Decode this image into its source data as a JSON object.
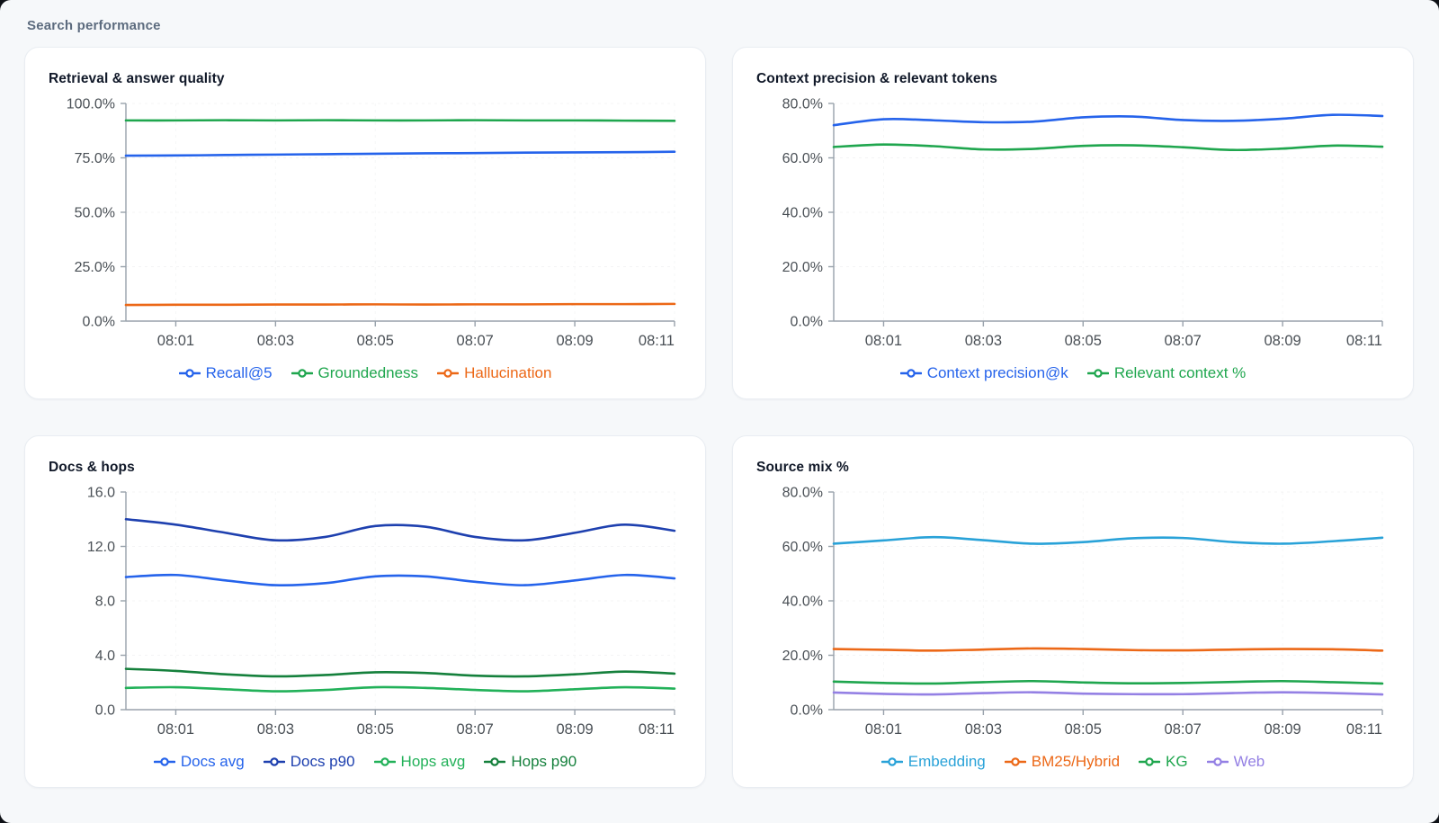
{
  "page": {
    "title": "Search performance"
  },
  "chart_data": [
    {
      "type": "line",
      "title": "Retrieval & answer quality",
      "x": [
        0,
        1,
        2,
        3,
        4,
        5,
        6,
        7,
        8,
        9,
        10,
        11
      ],
      "xticks": [
        1,
        3,
        5,
        7,
        9,
        11
      ],
      "xtick_labels": [
        "08:01",
        "08:03",
        "08:05",
        "08:07",
        "08:09",
        "08:11"
      ],
      "ylim": [
        0,
        100
      ],
      "yticks": [
        0,
        25,
        50,
        75,
        100
      ],
      "ytick_labels": [
        "0.0%",
        "25.0%",
        "50.0%",
        "75.0%",
        "100.0%"
      ],
      "grid": true,
      "legend_position": "bottom",
      "series": [
        {
          "name": "Recall@5",
          "color": "#2563eb",
          "values": [
            76.0,
            76.1,
            76.3,
            76.5,
            76.7,
            76.9,
            77.1,
            77.2,
            77.4,
            77.5,
            77.6,
            77.8
          ]
        },
        {
          "name": "Groundedness",
          "color": "#1fa64e",
          "values": [
            92.2,
            92.2,
            92.3,
            92.2,
            92.3,
            92.2,
            92.2,
            92.3,
            92.2,
            92.2,
            92.1,
            92.0
          ]
        },
        {
          "name": "Hallucination",
          "color": "#ec6817",
          "values": [
            7.4,
            7.5,
            7.5,
            7.6,
            7.6,
            7.7,
            7.6,
            7.7,
            7.7,
            7.8,
            7.8,
            7.9
          ]
        }
      ]
    },
    {
      "type": "line",
      "title": "Context precision & relevant tokens",
      "x": [
        0,
        1,
        2,
        3,
        4,
        5,
        6,
        7,
        8,
        9,
        10,
        11
      ],
      "xticks": [
        1,
        3,
        5,
        7,
        9,
        11
      ],
      "xtick_labels": [
        "08:01",
        "08:03",
        "08:05",
        "08:07",
        "08:09",
        "08:11"
      ],
      "ylim": [
        0,
        80
      ],
      "yticks": [
        0,
        20,
        40,
        60,
        80
      ],
      "ytick_labels": [
        "0.0%",
        "20.0%",
        "40.0%",
        "60.0%",
        "80.0%"
      ],
      "grid": true,
      "legend_position": "bottom",
      "series": [
        {
          "name": "Context precision@k",
          "color": "#2563eb",
          "values": [
            72.0,
            74.2,
            73.8,
            73.1,
            73.3,
            74.9,
            75.2,
            73.9,
            73.6,
            74.4,
            75.8,
            75.4
          ]
        },
        {
          "name": "Relevant context %",
          "color": "#1fa64e",
          "values": [
            64.0,
            64.9,
            64.3,
            63.1,
            63.3,
            64.4,
            64.6,
            63.9,
            62.9,
            63.4,
            64.5,
            64.1
          ]
        }
      ]
    },
    {
      "type": "line",
      "title": "Docs & hops",
      "x": [
        0,
        1,
        2,
        3,
        4,
        5,
        6,
        7,
        8,
        9,
        10,
        11
      ],
      "xticks": [
        1,
        3,
        5,
        7,
        9,
        11
      ],
      "xtick_labels": [
        "08:01",
        "08:03",
        "08:05",
        "08:07",
        "08:09",
        "08:11"
      ],
      "ylim": [
        0,
        16
      ],
      "yticks": [
        0,
        4,
        8,
        12,
        16
      ],
      "ytick_labels": [
        "0.0",
        "4.0",
        "8.0",
        "12.0",
        "16.0"
      ],
      "grid": true,
      "legend_position": "bottom",
      "series": [
        {
          "name": "Docs avg",
          "color": "#2563eb",
          "values": [
            9.75,
            9.9,
            9.5,
            9.15,
            9.3,
            9.8,
            9.8,
            9.4,
            9.15,
            9.5,
            9.9,
            9.65
          ]
        },
        {
          "name": "Docs p90",
          "color": "#1e40af",
          "values": [
            14.0,
            13.6,
            13.0,
            12.45,
            12.7,
            13.5,
            13.45,
            12.7,
            12.45,
            13.0,
            13.6,
            13.15
          ]
        },
        {
          "name": "Hops avg",
          "color": "#22b159",
          "values": [
            1.6,
            1.65,
            1.5,
            1.35,
            1.45,
            1.65,
            1.6,
            1.45,
            1.35,
            1.5,
            1.65,
            1.55
          ]
        },
        {
          "name": "Hops p90",
          "color": "#15803c",
          "values": [
            3.0,
            2.85,
            2.6,
            2.45,
            2.55,
            2.75,
            2.7,
            2.5,
            2.45,
            2.6,
            2.8,
            2.65
          ]
        }
      ]
    },
    {
      "type": "line",
      "title": "Source mix %",
      "x": [
        0,
        1,
        2,
        3,
        4,
        5,
        6,
        7,
        8,
        9,
        10,
        11
      ],
      "xticks": [
        1,
        3,
        5,
        7,
        9,
        11
      ],
      "xtick_labels": [
        "08:01",
        "08:03",
        "08:05",
        "08:07",
        "08:09",
        "08:11"
      ],
      "ylim": [
        0,
        80
      ],
      "yticks": [
        0,
        20,
        40,
        60,
        80
      ],
      "ytick_labels": [
        "0.0%",
        "20.0%",
        "40.0%",
        "60.0%",
        "80.0%"
      ],
      "grid": true,
      "legend_position": "bottom",
      "series": [
        {
          "name": "Embedding",
          "color": "#29a2d8",
          "values": [
            61.0,
            62.2,
            63.4,
            62.3,
            61.0,
            61.6,
            63.0,
            63.1,
            61.6,
            61.0,
            61.9,
            63.2
          ]
        },
        {
          "name": "BM25/Hybrid",
          "color": "#ec6817",
          "values": [
            22.3,
            22.0,
            21.7,
            22.1,
            22.5,
            22.3,
            21.9,
            21.8,
            22.1,
            22.3,
            22.2,
            21.7
          ]
        },
        {
          "name": "KG",
          "color": "#1fa64e",
          "values": [
            10.3,
            9.8,
            9.6,
            10.1,
            10.5,
            10.0,
            9.7,
            9.8,
            10.2,
            10.5,
            10.1,
            9.6
          ]
        },
        {
          "name": "Web",
          "color": "#9480e4",
          "values": [
            6.3,
            5.8,
            5.6,
            6.1,
            6.4,
            5.9,
            5.7,
            5.7,
            6.1,
            6.4,
            6.1,
            5.6
          ]
        }
      ]
    }
  ]
}
